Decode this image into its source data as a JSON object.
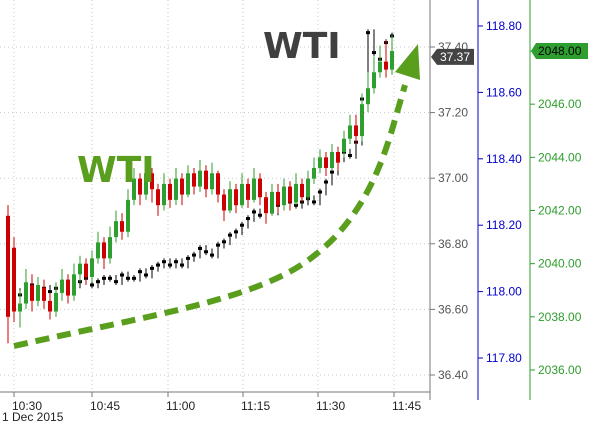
{
  "chart_data": {
    "type": "candlestick",
    "title": "",
    "annotations": [
      {
        "text": "WTI",
        "color": "#404040"
      },
      {
        "text": "WTI",
        "color": "#5a9e1e"
      }
    ],
    "date_label": "1 Dec 2015",
    "x_ticks": [
      "10:30",
      "10:45",
      "11:00",
      "11:15",
      "11:30",
      "11:45"
    ],
    "axes": {
      "wti": {
        "ticks": [
          "37.40",
          "37.20",
          "37.00",
          "36.80",
          "36.60",
          "36.40"
        ],
        "current": "37.37",
        "color": "#555555"
      },
      "blue": {
        "ticks": [
          "118.80",
          "118.60",
          "118.40",
          "118.20",
          "118.00",
          "117.80"
        ],
        "color": "#0000cc"
      },
      "green": {
        "ticks": [
          "2048.00",
          "2046.00",
          "2044.00",
          "2042.00",
          "2040.00",
          "2038.00",
          "2036.00"
        ],
        "current": "2048.00",
        "color": "#2e9e2e"
      }
    },
    "series": [
      {
        "name": "",
        "color": "#000000",
        "axis": "blue",
        "values": [
          118.01,
          118.0,
          117.99,
          118.01,
          118.02,
          118.0,
          118.01,
          118.0,
          118.01,
          118.02,
          118.03,
          118.02,
          118.03,
          118.04,
          118.02,
          118.03,
          118.04,
          118.04,
          118.03,
          118.05,
          118.04,
          118.04,
          118.06,
          118.05,
          118.07,
          118.08,
          118.09,
          118.08,
          118.09,
          118.08,
          118.1,
          118.11,
          118.13,
          118.12,
          118.11,
          118.14,
          118.15,
          118.17,
          118.18,
          118.2,
          118.22,
          118.24,
          118.23,
          118.25,
          118.24,
          118.26,
          118.28,
          118.27,
          118.26,
          118.27,
          118.28,
          118.27,
          118.3,
          118.33,
          118.36,
          118.4,
          118.42,
          118.41,
          118.45,
          118.58,
          118.78,
          118.72,
          118.7,
          118.75,
          118.77
        ]
      },
      {
        "name": "",
        "axis": "green",
        "up_color": "#2e9e2e",
        "down_color": "#cc0000",
        "candles": [
          [
            2041.8,
            2038.0,
            2037.0,
            2042.2
          ],
          [
            2040.6,
            2038.2,
            2037.8,
            2041.0
          ],
          [
            2038.2,
            2038.5,
            2037.6,
            2039.0
          ],
          [
            2038.5,
            2039.3,
            2038.3,
            2039.8
          ],
          [
            2039.2,
            2038.6,
            2038.2,
            2039.6
          ],
          [
            2038.6,
            2039.2,
            2038.4,
            2039.5
          ],
          [
            2039.1,
            2038.6,
            2038.3,
            2039.4
          ],
          [
            2038.6,
            2038.2,
            2037.9,
            2038.9
          ],
          [
            2038.2,
            2038.9,
            2038.0,
            2039.3
          ],
          [
            2038.9,
            2039.4,
            2038.6,
            2039.8
          ],
          [
            2039.4,
            2038.8,
            2038.5,
            2039.6
          ],
          [
            2038.8,
            2039.6,
            2038.6,
            2040.0
          ],
          [
            2039.6,
            2040.0,
            2039.3,
            2040.3
          ],
          [
            2040.0,
            2039.5,
            2039.2,
            2040.2
          ],
          [
            2039.5,
            2040.2,
            2039.3,
            2040.5
          ],
          [
            2040.2,
            2040.8,
            2040.0,
            2041.2
          ],
          [
            2040.8,
            2040.2,
            2039.8,
            2041.0
          ],
          [
            2040.2,
            2041.0,
            2040.0,
            2041.4
          ],
          [
            2041.0,
            2041.6,
            2040.8,
            2042.0
          ],
          [
            2041.6,
            2041.2,
            2040.9,
            2041.9
          ],
          [
            2041.2,
            2042.4,
            2041.0,
            2042.8
          ],
          [
            2042.4,
            2043.2,
            2042.2,
            2043.6
          ],
          [
            2043.2,
            2042.6,
            2042.2,
            2043.4
          ],
          [
            2042.6,
            2043.4,
            2042.4,
            2043.8
          ],
          [
            2043.4,
            2042.8,
            2042.3,
            2043.6
          ],
          [
            2042.8,
            2042.2,
            2041.8,
            2043.0
          ],
          [
            2042.2,
            2043.0,
            2042.0,
            2043.4
          ],
          [
            2043.0,
            2042.4,
            2042.1,
            2043.2
          ],
          [
            2042.4,
            2043.2,
            2042.2,
            2043.6
          ],
          [
            2043.2,
            2042.6,
            2042.2,
            2043.4
          ],
          [
            2042.6,
            2043.4,
            2042.5,
            2043.7
          ],
          [
            2043.4,
            2042.9,
            2042.6,
            2043.6
          ],
          [
            2042.9,
            2043.5,
            2042.7,
            2043.9
          ],
          [
            2043.5,
            2042.8,
            2042.5,
            2043.7
          ],
          [
            2042.8,
            2043.4,
            2042.6,
            2043.8
          ],
          [
            2043.4,
            2042.6,
            2042.3,
            2043.5
          ],
          [
            2042.6,
            2042.0,
            2041.6,
            2042.8
          ],
          [
            2042.0,
            2042.8,
            2041.9,
            2043.1
          ],
          [
            2042.8,
            2042.2,
            2041.9,
            2043.0
          ],
          [
            2042.2,
            2043.0,
            2042.1,
            2043.4
          ],
          [
            2043.0,
            2042.4,
            2042.1,
            2043.2
          ],
          [
            2042.4,
            2043.2,
            2042.3,
            2043.6
          ],
          [
            2043.2,
            2042.5,
            2042.2,
            2043.4
          ],
          [
            2042.5,
            2041.9,
            2041.5,
            2042.7
          ],
          [
            2041.9,
            2042.7,
            2041.8,
            2043.0
          ],
          [
            2042.7,
            2042.2,
            2041.9,
            2043.0
          ],
          [
            2042.2,
            2042.9,
            2042.0,
            2043.2
          ],
          [
            2042.9,
            2042.3,
            2042.0,
            2043.1
          ],
          [
            2042.3,
            2043.0,
            2042.2,
            2043.4
          ],
          [
            2043.0,
            2042.5,
            2042.3,
            2043.2
          ],
          [
            2042.5,
            2043.2,
            2042.4,
            2043.5
          ],
          [
            2043.2,
            2043.6,
            2043.0,
            2044.0
          ],
          [
            2043.6,
            2044.0,
            2043.4,
            2044.3
          ],
          [
            2044.0,
            2043.6,
            2043.3,
            2044.2
          ],
          [
            2043.6,
            2044.2,
            2043.5,
            2044.5
          ],
          [
            2044.2,
            2043.8,
            2043.5,
            2044.4
          ],
          [
            2044.2,
            2044.7,
            2044.0,
            2045.0
          ],
          [
            2044.7,
            2045.2,
            2044.5,
            2045.6
          ],
          [
            2045.2,
            2044.8,
            2044.5,
            2045.6
          ],
          [
            2044.8,
            2046.0,
            2044.6,
            2046.4
          ],
          [
            2046.0,
            2046.6,
            2045.7,
            2047.2
          ],
          [
            2046.6,
            2047.2,
            2046.4,
            2047.8
          ],
          [
            2047.2,
            2047.6,
            2047.0,
            2048.2
          ],
          [
            2047.6,
            2047.3,
            2047.0,
            2048.4
          ],
          [
            2047.3,
            2048.0,
            2047.1,
            2048.6
          ]
        ]
      }
    ],
    "trend_arrow": {
      "color": "#5a9e1e",
      "style": "dashed"
    }
  }
}
